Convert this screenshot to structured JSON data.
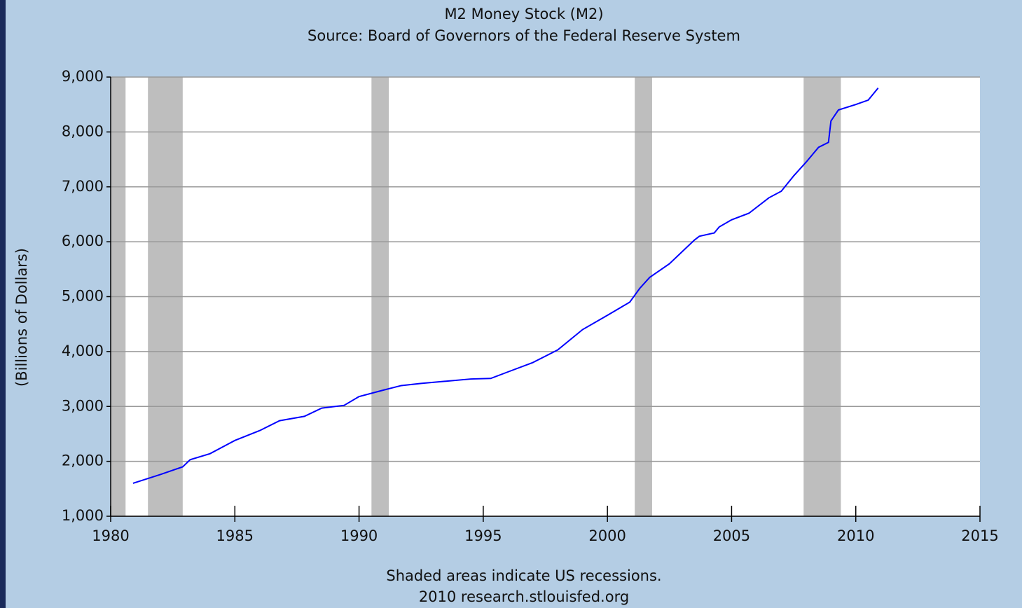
{
  "chart_data": {
    "type": "line",
    "title": "M2 Money Stock (M2)",
    "subtitle": "Source: Board of Governors of the Federal Reserve System",
    "y_label": "(Billions of Dollars)",
    "note": "Shaded areas indicate US recessions.",
    "credit": "2010 research.stlouisfed.org",
    "x": [
      1980.9,
      1982.0,
      1982.9,
      1983.2,
      1984.0,
      1985.0,
      1986.0,
      1986.8,
      1987.8,
      1988.5,
      1989.4,
      1990.0,
      1991.0,
      1991.7,
      1992.5,
      1993.5,
      1994.5,
      1995.3,
      1996.0,
      1997.0,
      1998.0,
      1999.0,
      2000.0,
      2000.9,
      2001.3,
      2001.7,
      2002.5,
      2003.5,
      2003.7,
      2004.3,
      2004.5,
      2005.0,
      2005.7,
      2006.5,
      2007.0,
      2007.5,
      2008.0,
      2008.5,
      2008.9,
      2009.0,
      2009.3,
      2010.0,
      2010.5,
      2010.9
    ],
    "series": [
      {
        "name": "M2",
        "color": "#0000ff",
        "values": [
          1600,
          1760,
          1900,
          2030,
          2140,
          2380,
          2560,
          2740,
          2820,
          2970,
          3020,
          3180,
          3300,
          3380,
          3420,
          3460,
          3500,
          3510,
          3630,
          3800,
          4030,
          4400,
          4660,
          4900,
          5150,
          5350,
          5600,
          6030,
          6100,
          6160,
          6270,
          6400,
          6520,
          6800,
          6920,
          7200,
          7450,
          7720,
          7810,
          8200,
          8400,
          8500,
          8580,
          8800
        ]
      }
    ],
    "recessions": [
      {
        "start": 1980.0,
        "end": 1980.6
      },
      {
        "start": 1981.5,
        "end": 1982.9
      },
      {
        "start": 1990.5,
        "end": 1991.2
      },
      {
        "start": 2001.1,
        "end": 2001.8
      },
      {
        "start": 2007.9,
        "end": 2009.4
      }
    ],
    "recession_color": "#bebebe",
    "xlim": [
      1980,
      2015
    ],
    "xticks": [
      1980,
      1985,
      1990,
      1995,
      2000,
      2005,
      2010,
      2015
    ],
    "ylim": [
      1000,
      9000
    ],
    "yticks": [
      {
        "value": 1000,
        "label": "1,000"
      },
      {
        "value": 2000,
        "label": "2,000"
      },
      {
        "value": 3000,
        "label": "3,000"
      },
      {
        "value": 4000,
        "label": "4,000"
      },
      {
        "value": 5000,
        "label": "5,000"
      },
      {
        "value": 6000,
        "label": "6,000"
      },
      {
        "value": 7000,
        "label": "7,000"
      },
      {
        "value": 8000,
        "label": "8,000"
      },
      {
        "value": 9000,
        "label": "9,000"
      }
    ],
    "grid": true
  }
}
